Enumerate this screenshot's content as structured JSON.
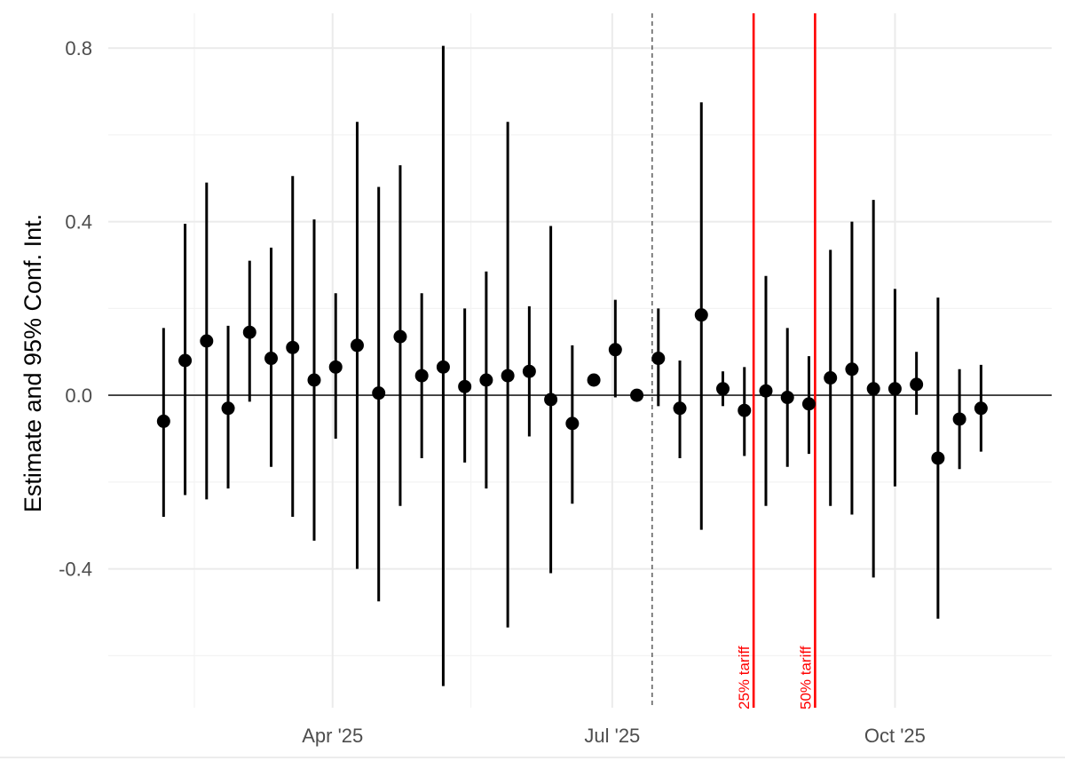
{
  "chart_data": {
    "type": "scatter",
    "subtype": "point-range event study",
    "title": "",
    "xlabel": "",
    "ylabel": "Estimate and 95% Conf. Int.",
    "ylim": [
      -0.72,
      0.88
    ],
    "xlim": [
      "2025-01-18",
      "2025-11-21"
    ],
    "x_ticks": [
      {
        "date": "2025-04-01",
        "label": "Apr '25"
      },
      {
        "date": "2025-07-01",
        "label": "Jul '25"
      },
      {
        "date": "2025-10-01",
        "label": "Oct '25"
      }
    ],
    "x_minor_ticks": [
      "2025-02-15",
      "2025-05-16",
      "2025-08-16"
    ],
    "y_ticks": [
      {
        "value": -0.4,
        "label": "-0.4"
      },
      {
        "value": 0.0,
        "label": "0.0"
      },
      {
        "value": 0.4,
        "label": "0.4"
      },
      {
        "value": 0.8,
        "label": "0.8"
      }
    ],
    "y_minor_ticks": [
      -0.6,
      -0.2,
      0.2,
      0.6
    ],
    "grid": true,
    "zero_line": 0.0,
    "reference_line": {
      "date": "2025-07-14",
      "style": "dashed"
    },
    "events": [
      {
        "date": "2025-08-16",
        "label": "25% tariff",
        "color": "#ff0000"
      },
      {
        "date": "2025-09-05",
        "label": "50% tariff",
        "color": "#ff0000"
      }
    ],
    "colors": {
      "points": "#000000",
      "events": "#ff0000",
      "grid": "#ebebeb",
      "text": "#4d4d4d"
    },
    "points": [
      {
        "x": "2025-02-05",
        "y": -0.06,
        "lo": -0.28,
        "hi": 0.155
      },
      {
        "x": "2025-02-12",
        "y": 0.08,
        "lo": -0.23,
        "hi": 0.395
      },
      {
        "x": "2025-02-19",
        "y": 0.125,
        "lo": -0.24,
        "hi": 0.49
      },
      {
        "x": "2025-02-26",
        "y": -0.03,
        "lo": -0.215,
        "hi": 0.16
      },
      {
        "x": "2025-03-05",
        "y": 0.145,
        "lo": -0.015,
        "hi": 0.31
      },
      {
        "x": "2025-03-12",
        "y": 0.085,
        "lo": -0.165,
        "hi": 0.34
      },
      {
        "x": "2025-03-19",
        "y": 0.11,
        "lo": -0.28,
        "hi": 0.505
      },
      {
        "x": "2025-03-26",
        "y": 0.035,
        "lo": -0.335,
        "hi": 0.405
      },
      {
        "x": "2025-04-02",
        "y": 0.065,
        "lo": -0.1,
        "hi": 0.235
      },
      {
        "x": "2025-04-09",
        "y": 0.115,
        "lo": -0.4,
        "hi": 0.63
      },
      {
        "x": "2025-04-16",
        "y": 0.005,
        "lo": -0.475,
        "hi": 0.48
      },
      {
        "x": "2025-04-23",
        "y": 0.135,
        "lo": -0.255,
        "hi": 0.53
      },
      {
        "x": "2025-04-30",
        "y": 0.045,
        "lo": -0.145,
        "hi": 0.235
      },
      {
        "x": "2025-05-07",
        "y": 0.065,
        "lo": -0.67,
        "hi": 0.805
      },
      {
        "x": "2025-05-14",
        "y": 0.02,
        "lo": -0.155,
        "hi": 0.2
      },
      {
        "x": "2025-05-21",
        "y": 0.035,
        "lo": -0.215,
        "hi": 0.285
      },
      {
        "x": "2025-05-28",
        "y": 0.045,
        "lo": -0.535,
        "hi": 0.63
      },
      {
        "x": "2025-06-04",
        "y": 0.055,
        "lo": -0.095,
        "hi": 0.205
      },
      {
        "x": "2025-06-11",
        "y": -0.01,
        "lo": -0.41,
        "hi": 0.39
      },
      {
        "x": "2025-06-18",
        "y": -0.065,
        "lo": -0.25,
        "hi": 0.115
      },
      {
        "x": "2025-06-25",
        "y": 0.035,
        "lo": null,
        "hi": null
      },
      {
        "x": "2025-07-02",
        "y": 0.105,
        "lo": -0.005,
        "hi": 0.22
      },
      {
        "x": "2025-07-09",
        "y": 0.0,
        "lo": null,
        "hi": null
      },
      {
        "x": "2025-07-16",
        "y": 0.085,
        "lo": -0.025,
        "hi": 0.2
      },
      {
        "x": "2025-07-23",
        "y": -0.03,
        "lo": -0.145,
        "hi": 0.08
      },
      {
        "x": "2025-07-30",
        "y": 0.185,
        "lo": -0.31,
        "hi": 0.675
      },
      {
        "x": "2025-08-06",
        "y": 0.015,
        "lo": -0.025,
        "hi": 0.055
      },
      {
        "x": "2025-08-13",
        "y": -0.035,
        "lo": -0.14,
        "hi": 0.065
      },
      {
        "x": "2025-08-20",
        "y": 0.01,
        "lo": -0.255,
        "hi": 0.275
      },
      {
        "x": "2025-08-27",
        "y": -0.005,
        "lo": -0.165,
        "hi": 0.155
      },
      {
        "x": "2025-09-03",
        "y": -0.02,
        "lo": -0.135,
        "hi": 0.09
      },
      {
        "x": "2025-09-10",
        "y": 0.04,
        "lo": -0.255,
        "hi": 0.335
      },
      {
        "x": "2025-09-17",
        "y": 0.06,
        "lo": -0.275,
        "hi": 0.4
      },
      {
        "x": "2025-09-24",
        "y": 0.015,
        "lo": -0.42,
        "hi": 0.45
      },
      {
        "x": "2025-10-01",
        "y": 0.015,
        "lo": -0.21,
        "hi": 0.245
      },
      {
        "x": "2025-10-08",
        "y": 0.025,
        "lo": -0.045,
        "hi": 0.1
      },
      {
        "x": "2025-10-15",
        "y": -0.145,
        "lo": -0.515,
        "hi": 0.225
      },
      {
        "x": "2025-10-22",
        "y": -0.055,
        "lo": -0.17,
        "hi": 0.06
      },
      {
        "x": "2025-10-29",
        "y": -0.03,
        "lo": -0.13,
        "hi": 0.07
      }
    ]
  }
}
